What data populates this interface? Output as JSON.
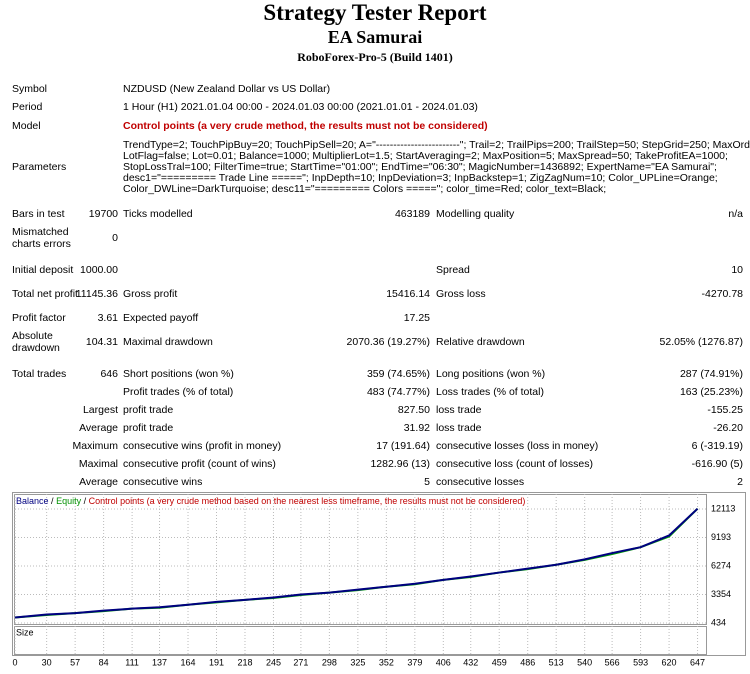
{
  "header": {
    "title": "Strategy Tester Report",
    "subtitle": "EA Samurai",
    "server": "RoboForex-Pro-5 (Build 1401)"
  },
  "rows": [
    [
      "Symbol",
      "NZDUSD (New Zealand Dollar vs US Dollar)"
    ],
    [
      "Period",
      "1 Hour (H1) 2021.01.04 00:00 - 2024.01.03 00:00 (2021.01.01 - 2024.01.03)"
    ],
    [
      "Model",
      "Control points (a very crude method, the results must not be considered)"
    ],
    [
      "Parameters",
      "TrendType=2; TouchPipBuy=20; TouchPipSell=20; A=\"------------------------\"; Trail=2; TrailPips=200; TrailStep=50; StepGrid=250; MaxOrder=10;",
      "LotFlag=false; Lot=0.01; Balance=1000; MultiplierLot=1.5; StartAveraging=2; MaxPosition=5; MaxSpread=50; TakeProfitEA=1000;",
      "StopLossTral=100; FilterTime=true; StartTime=\"01:00\"; EndTime=\"06:30\"; MagicNumber=1436892; ExpertName=\"EA Samurai\";",
      "desc1=\"========= Trade Line =====\"; InpDepth=10; InpDeviation=3; InpBackstep=1; ZigZagNum=10; Color_UPLine=Orange;",
      "Color_DWLine=DarkTurquoise; desc11=\"========= Colors =====\"; color_time=Red; color_text=Black;"
    ],
    [
      "Bars in test",
      "19700",
      "Ticks modelled",
      "463189",
      "Modelling quality",
      "n/a"
    ],
    [
      "Mismatched charts errors",
      "0"
    ],
    [
      "Initial deposit",
      "1000.00",
      "Spread",
      "10"
    ],
    [
      "Total net profit",
      "11145.36",
      "Gross profit",
      "15416.14",
      "Gross loss",
      "-4270.78"
    ],
    [
      "Profit factor",
      "3.61",
      "Expected payoff",
      "17.25"
    ],
    [
      "Absolute drawdown",
      "104.31",
      "Maximal drawdown",
      "2070.36 (19.27%)",
      "Relative drawdown",
      "52.05% (1276.87)"
    ],
    [
      "Total trades",
      "646",
      "Short positions (won %)",
      "359 (74.65%)",
      "Long positions (won %)",
      "287 (74.91%)"
    ],
    [
      "Profit trades (% of total)",
      "483 (74.77%)",
      "Loss trades (% of total)",
      "163 (25.23%)"
    ],
    [
      "Largest",
      "profit trade",
      "827.50",
      "loss trade",
      "-155.25"
    ],
    [
      "Average",
      "profit trade",
      "31.92",
      "loss trade",
      "-26.20"
    ],
    [
      "Maximum",
      "consecutive wins (profit in money)",
      "17 (191.64)",
      "consecutive losses (loss in money)",
      "6 (-319.19)"
    ],
    [
      "Maximal",
      "consecutive profit (count of wins)",
      "1282.96 (13)",
      "consecutive loss (count of losses)",
      "-616.90 (5)"
    ],
    [
      "Average",
      "consecutive wins",
      "5",
      "consecutive losses",
      "2"
    ]
  ],
  "chart_data": {
    "type": "line",
    "legend_separator": " / ",
    "annotation": "Control points (a very crude method based on the nearest less timeframe, the results must not be considered)",
    "size_label": "Size",
    "x": [
      0,
      30,
      57,
      84,
      111,
      137,
      164,
      191,
      218,
      245,
      271,
      298,
      325,
      352,
      379,
      406,
      432,
      459,
      486,
      513,
      540,
      566,
      593,
      620,
      647
    ],
    "series": [
      {
        "name": "Balance",
        "color": "#000080",
        "values": [
          1000,
          1300,
          1450,
          1700,
          1900,
          2050,
          2300,
          2600,
          2800,
          3050,
          3350,
          3550,
          3850,
          4150,
          4450,
          4850,
          5200,
          5600,
          6000,
          6400,
          6950,
          7600,
          8200,
          9400,
          12145
        ]
      },
      {
        "name": "Equity",
        "color": "#00a000",
        "values": [
          1000,
          1250,
          1450,
          1650,
          1900,
          2000,
          2300,
          2550,
          2800,
          3000,
          3300,
          3550,
          3800,
          4150,
          4400,
          4850,
          5150,
          5600,
          5950,
          6400,
          6900,
          7500,
          8200,
          9300,
          12145
        ]
      }
    ],
    "xlim": [
      0,
      655
    ],
    "xticks": [
      0,
      30,
      57,
      84,
      111,
      137,
      164,
      191,
      218,
      245,
      271,
      298,
      325,
      352,
      379,
      406,
      432,
      459,
      486,
      513,
      540,
      566,
      593,
      620,
      647
    ],
    "ylim": [
      330,
      13650
    ],
    "yticks": [
      434,
      3354,
      6274,
      9193,
      12113
    ],
    "grid": true
  }
}
